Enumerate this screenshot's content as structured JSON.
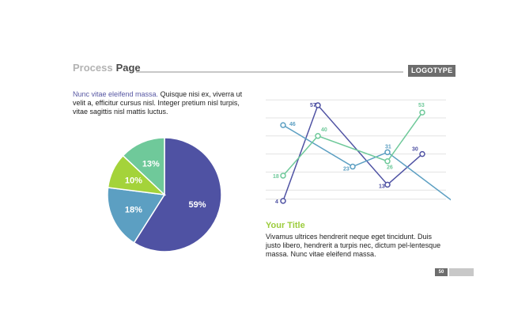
{
  "header": {
    "title_light": "Process",
    "title_dark": "Page",
    "logo": "LOGOTYPE"
  },
  "intro": {
    "accent": "Nunc vitae eleifend massa.",
    "rest": " Quisque nisi ex, viverra ut velit a, efficitur cursus nisl. Integer pretium nisl turpis, vitae sagittis nisl mattis luctus."
  },
  "right_block": {
    "title": "Your Title",
    "text": "Vivamus ultrices hendrerit neque eget tincidunt. Duis justo libero, hendrerit a turpis nec, dictum pel-lentesque massa. Nunc vitae eleifend massa."
  },
  "footer": {
    "page_number": "50"
  },
  "colors": {
    "navy": "#4f52a3",
    "teal": "#5c9fc2",
    "lime": "#a4d33a",
    "mint": "#6fc99a",
    "grid": "#e3e3e3"
  },
  "chart_data": [
    {
      "type": "pie",
      "labels": [
        "59%",
        "18%",
        "10%",
        "13%"
      ],
      "values": [
        59,
        18,
        10,
        13
      ],
      "colors": [
        "#4f52a3",
        "#5c9fc2",
        "#a4d33a",
        "#6fc99a"
      ]
    },
    {
      "type": "line",
      "x": [
        0,
        1,
        2,
        3,
        4,
        5
      ],
      "ylim": [
        0,
        60
      ],
      "grid": true,
      "series": [
        {
          "values": [
            4,
            57,
            null,
            13,
            30,
            null
          ],
          "color": "#4f52a3",
          "labels": [
            "4",
            "57",
            "",
            "13",
            "30",
            ""
          ]
        },
        {
          "values": [
            46,
            null,
            23,
            31,
            null,
            2
          ],
          "color": "#5c9fc2",
          "labels": [
            "46",
            "",
            "23",
            "31",
            "",
            "2"
          ]
        },
        {
          "values": [
            18,
            40,
            null,
            26,
            53,
            null
          ],
          "color": "#6fc99a",
          "labels": [
            "18",
            "40",
            "",
            "26",
            "53",
            ""
          ]
        }
      ]
    }
  ]
}
